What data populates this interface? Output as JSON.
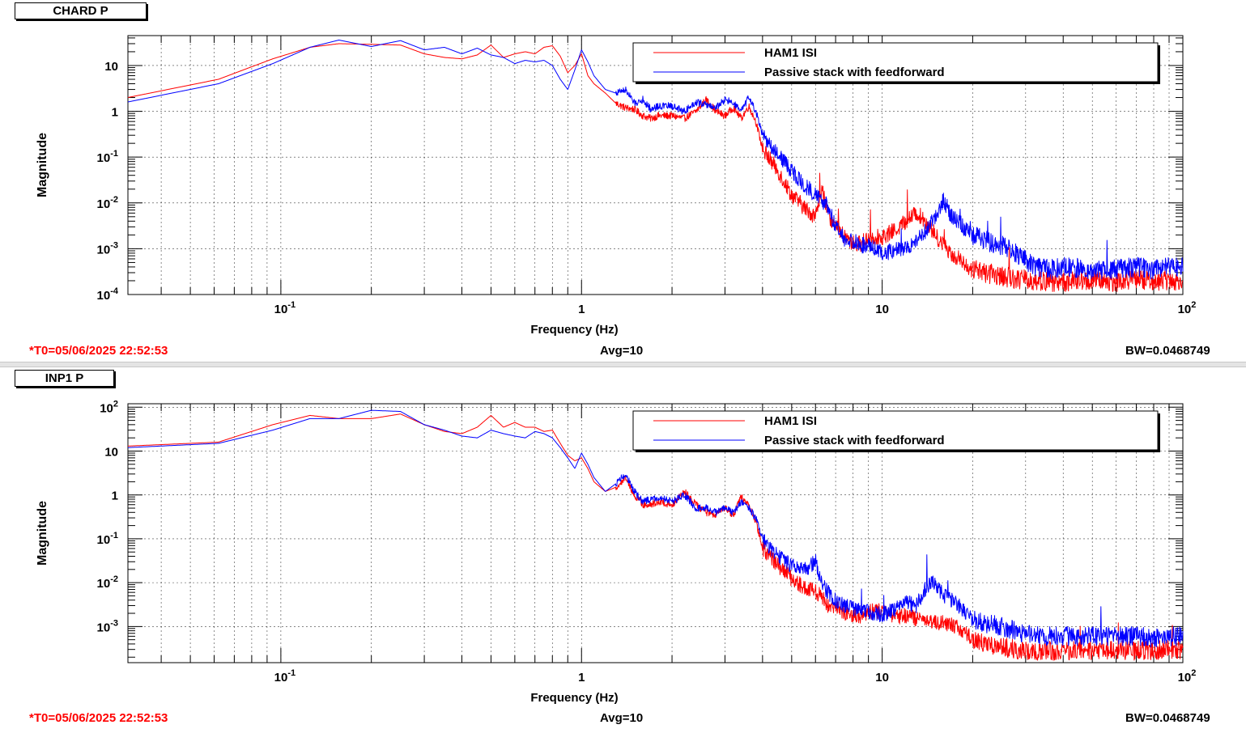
{
  "panes": [
    {
      "title": "CHARD P",
      "footer": {
        "t0": "*T0=05/06/2025 22:52:53",
        "avg": "Avg=10",
        "bw": "BW=0.0468749"
      }
    },
    {
      "title": "INP1 P",
      "footer": {
        "t0": "*T0=05/06/2025 22:52:53",
        "avg": "Avg=10",
        "bw": "BW=0.0468749"
      }
    }
  ],
  "colors": {
    "series_red": "#ff0000",
    "series_blue": "#0000ff"
  },
  "chart_data": [
    {
      "type": "line",
      "title": "CHARD P",
      "xlabel": "Frequency (Hz)",
      "ylabel": "Magnitude",
      "x_scale": "log",
      "y_scale": "log",
      "xlim": [
        0.031,
        100
      ],
      "ylim": [
        0.0001,
        45
      ],
      "x_ticks": [
        {
          "value": 0.1,
          "label": "10",
          "exp": "-1"
        },
        {
          "value": 1,
          "label": "1",
          "exp": ""
        },
        {
          "value": 10,
          "label": "10",
          "exp": ""
        },
        {
          "value": 100,
          "label": "10",
          "exp": "2"
        }
      ],
      "y_ticks": [
        {
          "value": 10,
          "label": "10",
          "exp": ""
        },
        {
          "value": 1,
          "label": "1",
          "exp": ""
        },
        {
          "value": 0.1,
          "label": "10",
          "exp": "-1"
        },
        {
          "value": 0.01,
          "label": "10",
          "exp": "-2"
        },
        {
          "value": 0.001,
          "label": "10",
          "exp": "-3"
        },
        {
          "value": 0.0001,
          "label": "10",
          "exp": "-4"
        }
      ],
      "grid": true,
      "legend_position": "top-right",
      "series": [
        {
          "name": "HAM1 ISI",
          "color": "#ff0000",
          "x": [
            0.031,
            0.062,
            0.094,
            0.125,
            0.156,
            0.2,
            0.25,
            0.3,
            0.35,
            0.4,
            0.45,
            0.5,
            0.55,
            0.6,
            0.65,
            0.7,
            0.75,
            0.8,
            0.85,
            0.9,
            0.95,
            1.0,
            1.05,
            1.1,
            1.2,
            1.3,
            1.4,
            1.5,
            1.6,
            1.7,
            1.8,
            2.0,
            2.2,
            2.4,
            2.6,
            2.8,
            3.0,
            3.2,
            3.4,
            3.6,
            3.8,
            4.0,
            4.5,
            5.0,
            5.5,
            6.0,
            6.3,
            6.6,
            7.0,
            7.5,
            8.0,
            8.5,
            9.0,
            10,
            11,
            12,
            13,
            14,
            15,
            16,
            17,
            18,
            19,
            20,
            22,
            25,
            28,
            32,
            36,
            40,
            50,
            60,
            70,
            80,
            90,
            100
          ],
          "y": [
            2,
            5,
            14,
            25,
            30,
            29,
            28,
            18,
            15,
            14,
            17,
            28,
            15,
            18,
            20,
            18,
            25,
            27,
            16,
            7,
            10,
            18,
            6,
            4,
            2.5,
            1.5,
            1.2,
            1.1,
            0.8,
            0.7,
            0.8,
            0.8,
            0.7,
            1.0,
            1.8,
            1.0,
            0.8,
            1.2,
            0.7,
            1.3,
            0.6,
            0.15,
            0.05,
            0.015,
            0.008,
            0.005,
            0.02,
            0.006,
            0.003,
            0.0018,
            0.0013,
            0.0013,
            0.0018,
            0.0018,
            0.0025,
            0.004,
            0.006,
            0.004,
            0.002,
            0.0012,
            0.0008,
            0.0006,
            0.0004,
            0.00035,
            0.0003,
            0.00025,
            0.00022,
            0.0002,
            0.00019,
            0.00019,
            0.0002,
            0.00019,
            0.00021,
            0.0002,
            0.00021,
            0.0002
          ]
        },
        {
          "name": "Passive stack with feedforward",
          "color": "#0000ff",
          "x": [
            0.031,
            0.062,
            0.094,
            0.125,
            0.156,
            0.2,
            0.25,
            0.3,
            0.35,
            0.4,
            0.45,
            0.5,
            0.55,
            0.6,
            0.65,
            0.7,
            0.75,
            0.8,
            0.85,
            0.9,
            0.95,
            1.0,
            1.05,
            1.1,
            1.2,
            1.3,
            1.4,
            1.5,
            1.6,
            1.7,
            1.8,
            2.0,
            2.2,
            2.4,
            2.6,
            2.8,
            3.0,
            3.2,
            3.4,
            3.6,
            3.8,
            4.0,
            4.5,
            5.0,
            5.5,
            6.0,
            6.3,
            6.6,
            7.0,
            7.5,
            8.0,
            8.5,
            9.0,
            10,
            11,
            12,
            13,
            14,
            15,
            16,
            17,
            18,
            19,
            20,
            22,
            25,
            28,
            32,
            36,
            40,
            50,
            60,
            70,
            80,
            90,
            100
          ],
          "y": [
            1.6,
            4,
            11,
            25,
            36,
            26,
            35,
            22,
            25,
            18,
            24,
            17,
            15,
            11,
            13,
            12,
            13,
            10,
            5,
            3,
            8,
            22,
            12,
            6,
            3,
            2.5,
            3,
            1.5,
            1.8,
            1.1,
            1.3,
            1.3,
            1.0,
            1.6,
            1.4,
            1.2,
            1.8,
            1.5,
            1.0,
            2.0,
            1.0,
            0.3,
            0.12,
            0.05,
            0.025,
            0.015,
            0.012,
            0.008,
            0.003,
            0.0015,
            0.0015,
            0.0012,
            0.0012,
            0.0008,
            0.0009,
            0.001,
            0.0015,
            0.0025,
            0.005,
            0.012,
            0.005,
            0.004,
            0.0025,
            0.002,
            0.0015,
            0.0012,
            0.0008,
            0.0004,
            0.00035,
            0.0004,
            0.00035,
            0.00035,
            0.0004,
            0.00035,
            0.0004,
            0.0004
          ]
        }
      ]
    },
    {
      "type": "line",
      "title": "INP1 P",
      "xlabel": "Frequency (Hz)",
      "ylabel": "Magnitude",
      "x_scale": "log",
      "y_scale": "log",
      "xlim": [
        0.031,
        100
      ],
      "ylim": [
        0.00015,
        120
      ],
      "x_ticks": [
        {
          "value": 0.1,
          "label": "10",
          "exp": "-1"
        },
        {
          "value": 1,
          "label": "1",
          "exp": ""
        },
        {
          "value": 10,
          "label": "10",
          "exp": ""
        },
        {
          "value": 100,
          "label": "10",
          "exp": "2"
        }
      ],
      "y_ticks": [
        {
          "value": 100,
          "label": "10",
          "exp": "2"
        },
        {
          "value": 10,
          "label": "10",
          "exp": ""
        },
        {
          "value": 1,
          "label": "1",
          "exp": ""
        },
        {
          "value": 0.1,
          "label": "10",
          "exp": "-1"
        },
        {
          "value": 0.01,
          "label": "10",
          "exp": "-2"
        },
        {
          "value": 0.001,
          "label": "10",
          "exp": "-3"
        }
      ],
      "grid": true,
      "legend_position": "top-right",
      "series": [
        {
          "name": "HAM1 ISI",
          "color": "#ff0000",
          "x": [
            0.031,
            0.062,
            0.094,
            0.125,
            0.156,
            0.2,
            0.25,
            0.3,
            0.35,
            0.4,
            0.45,
            0.5,
            0.55,
            0.6,
            0.65,
            0.7,
            0.75,
            0.8,
            0.85,
            0.9,
            0.95,
            1.0,
            1.05,
            1.1,
            1.2,
            1.3,
            1.4,
            1.5,
            1.6,
            1.7,
            1.8,
            2.0,
            2.2,
            2.4,
            2.6,
            2.8,
            3.0,
            3.2,
            3.4,
            3.6,
            3.8,
            4.0,
            4.5,
            5.0,
            5.5,
            6.0,
            6.3,
            6.6,
            7.0,
            7.5,
            8.0,
            8.5,
            9.0,
            10,
            11,
            12,
            13,
            14,
            15,
            16,
            17,
            18,
            19,
            20,
            22,
            25,
            28,
            32,
            36,
            40,
            50,
            60,
            70,
            80,
            90,
            100
          ],
          "y": [
            13,
            16,
            40,
            65,
            55,
            55,
            70,
            40,
            28,
            25,
            35,
            65,
            35,
            45,
            35,
            35,
            28,
            30,
            15,
            8,
            6,
            7,
            4,
            2.0,
            1.2,
            1.5,
            2.5,
            1.0,
            0.6,
            0.6,
            0.7,
            0.6,
            1.2,
            0.6,
            0.4,
            0.35,
            0.5,
            0.35,
            0.9,
            0.6,
            0.25,
            0.06,
            0.025,
            0.012,
            0.008,
            0.006,
            0.005,
            0.003,
            0.003,
            0.002,
            0.0018,
            0.0018,
            0.0022,
            0.0022,
            0.0016,
            0.0018,
            0.0015,
            0.0012,
            0.0012,
            0.0012,
            0.0011,
            0.0009,
            0.0007,
            0.0005,
            0.0004,
            0.00035,
            0.0003,
            0.00028,
            0.00028,
            0.00028,
            0.00028,
            0.0003,
            0.00028,
            0.00028,
            0.0003,
            0.0003
          ]
        },
        {
          "name": "Passive stack with feedforward",
          "color": "#0000ff",
          "x": [
            0.031,
            0.062,
            0.094,
            0.125,
            0.156,
            0.2,
            0.25,
            0.3,
            0.35,
            0.4,
            0.45,
            0.5,
            0.55,
            0.6,
            0.65,
            0.7,
            0.75,
            0.8,
            0.85,
            0.9,
            0.95,
            1.0,
            1.05,
            1.1,
            1.2,
            1.3,
            1.4,
            1.5,
            1.6,
            1.7,
            1.8,
            2.0,
            2.2,
            2.4,
            2.6,
            2.8,
            3.0,
            3.2,
            3.4,
            3.6,
            3.8,
            4.0,
            4.5,
            5.0,
            5.5,
            6.0,
            6.3,
            6.6,
            7.0,
            7.5,
            8.0,
            8.5,
            9.0,
            10,
            11,
            12,
            13,
            14,
            15,
            16,
            17,
            18,
            19,
            20,
            22,
            25,
            28,
            32,
            36,
            40,
            50,
            60,
            70,
            80,
            90,
            100
          ],
          "y": [
            12,
            15,
            30,
            55,
            55,
            85,
            80,
            40,
            30,
            22,
            20,
            30,
            25,
            22,
            20,
            28,
            25,
            20,
            12,
            7,
            4,
            9,
            5,
            2.5,
            1.2,
            1.8,
            3.0,
            1.2,
            0.7,
            0.8,
            0.9,
            0.7,
            1.0,
            0.5,
            0.5,
            0.4,
            0.5,
            0.4,
            0.7,
            0.5,
            0.3,
            0.1,
            0.04,
            0.025,
            0.02,
            0.03,
            0.01,
            0.006,
            0.004,
            0.003,
            0.0025,
            0.0025,
            0.0022,
            0.0018,
            0.0025,
            0.0035,
            0.003,
            0.008,
            0.01,
            0.005,
            0.004,
            0.003,
            0.002,
            0.0015,
            0.0012,
            0.001,
            0.0008,
            0.0006,
            0.0006,
            0.0006,
            0.0006,
            0.0006,
            0.0006,
            0.00055,
            0.0006,
            0.0006
          ]
        }
      ]
    }
  ]
}
